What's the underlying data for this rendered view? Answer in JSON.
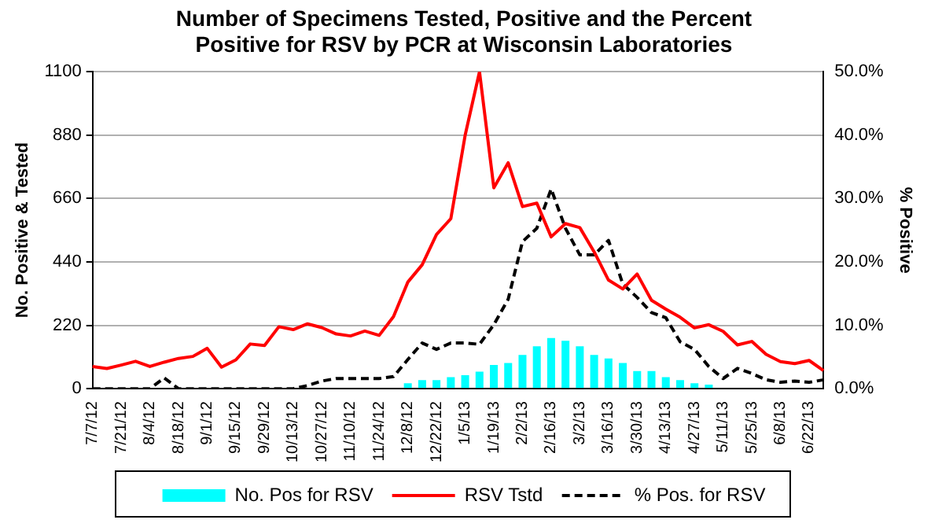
{
  "chart_data": {
    "type": "bar",
    "title": "Number of Specimens Tested, Positive and the Percent Positive for RSV by PCR at Wisconsin Laboratories",
    "ylabel": "No. Positive & Tested",
    "y2label": "% Positive",
    "categories": [
      "7/7/12",
      null,
      "7/21/12",
      null,
      "8/4/12",
      null,
      "8/18/12",
      null,
      "9/1/12",
      null,
      "9/15/12",
      null,
      "9/29/12",
      null,
      "10/13/12",
      null,
      "10/27/12",
      null,
      "11/10/12",
      null,
      "11/24/12",
      null,
      "12/8/12",
      null,
      "12/22/12",
      null,
      "1/5/13",
      null,
      "1/19/13",
      null,
      "2/2/13",
      null,
      "2/16/13",
      null,
      "3/2/13",
      null,
      "3/16/13",
      null,
      "3/30/13",
      null,
      "4/13/13",
      null,
      "4/27/13",
      null,
      "5/11/13",
      null,
      "5/25/13",
      null,
      "6/8/13",
      null,
      "6/22/13",
      null
    ],
    "series": [
      {
        "name": "No. Pos for RSV",
        "color": "#00ffff",
        "values": [
          0,
          0,
          0,
          0,
          0,
          0,
          0,
          0,
          0,
          0,
          0,
          0,
          0,
          0,
          0,
          0,
          0,
          0,
          0,
          0,
          0,
          0,
          19,
          30,
          30,
          40,
          47,
          59,
          82,
          89,
          117,
          147,
          176,
          166,
          147,
          117,
          105,
          89,
          61,
          61,
          40,
          30,
          19,
          14,
          0,
          0,
          0,
          0,
          0,
          0,
          0,
          0
        ]
      },
      {
        "name": "RSV Tstd",
        "type": "line",
        "color": "#ff0000",
        "line_style": "solid",
        "values": [
          77,
          70,
          82,
          95,
          77,
          92,
          105,
          112,
          140,
          75,
          100,
          155,
          150,
          215,
          205,
          225,
          212,
          190,
          183,
          200,
          185,
          250,
          370,
          430,
          535,
          590,
          880,
          1100,
          697,
          784,
          632,
          644,
          527,
          573,
          559,
          475,
          377,
          346,
          398,
          307,
          276,
          248,
          211,
          222,
          199,
          152,
          164,
          119,
          94,
          87,
          98,
          63
        ]
      },
      {
        "name": "% Pos. for RSV",
        "type": "line",
        "axis": "y2",
        "color": "#000000",
        "line_style": "dashed",
        "values": [
          0,
          0,
          0,
          0,
          0,
          1.7,
          0,
          0,
          0,
          0,
          0,
          0,
          0,
          0,
          0,
          0.5,
          1.2,
          1.6,
          1.6,
          1.6,
          1.6,
          1.9,
          4.6,
          7.2,
          6.2,
          7.2,
          7.2,
          7.0,
          10.1,
          14.1,
          23.2,
          25.3,
          31.5,
          25.3,
          21.1,
          21.1,
          23.4,
          16.5,
          14.4,
          12.0,
          11.2,
          7.4,
          6.2,
          3.5,
          1.6,
          3.2,
          2.4,
          1.4,
          1.0,
          1.2,
          1.0,
          1.4
        ]
      }
    ],
    "ylim": [
      0,
      1100
    ],
    "yticks": [
      0,
      220,
      440,
      660,
      880,
      1100
    ],
    "y2lim": [
      0,
      50
    ],
    "y2ticks": [
      {
        "value": 0,
        "label": "0.0%"
      },
      {
        "value": 10,
        "label": "10.0%"
      },
      {
        "value": 20,
        "label": "20.0%"
      },
      {
        "value": 30,
        "label": "30.0%"
      },
      {
        "value": 40,
        "label": "40.0%"
      },
      {
        "value": 50,
        "label": "50.0%"
      }
    ],
    "grid": "y",
    "legend": "bottom",
    "marker": "none"
  }
}
